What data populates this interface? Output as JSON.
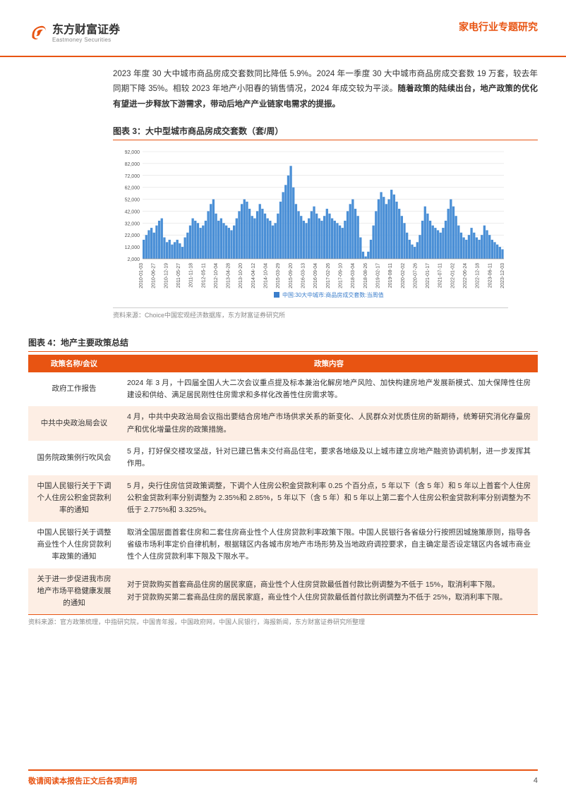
{
  "header": {
    "logo_cn": "东方财富证券",
    "logo_en": "Eastmoney Securities",
    "category": "家电行业专题研究",
    "logo_color": "#e85412"
  },
  "paragraph": {
    "text_plain": "2023 年度 30 大中城市商品房成交套数同比降低 5.9%。2024 年一季度 30 大中城市商品房成交套数 19 万套，较去年同期下降 35%。相较 2023 年地产小阳春的销售情况，2024 年成交较为平淡。",
    "text_bold": "随着政策的陆续出台，地产政策的优化有望进一步释放下游需求，带动后地产产业链家电需求的提振。"
  },
  "chart": {
    "title": "图表 3：大中型城市商品房成交套数（套/周）",
    "type": "area-bar",
    "legend": "中国:30大中城市:商品房成交套数:当周值",
    "legend_color": "#3b7ecb",
    "source": "资料来源：Choice中国宏观经济数据库，东方财富证券研究所",
    "ylim": [
      2000,
      92000
    ],
    "ytick_step": 10000,
    "yticks": [
      "2,000",
      "12,000",
      "22,000",
      "32,000",
      "42,000",
      "52,000",
      "62,000",
      "72,000",
      "82,000",
      "92,000"
    ],
    "xlabels": [
      "2010-01-03",
      "2010-06-27",
      "2010-12-19",
      "2011-05-27",
      "2011-11-18",
      "2012-05-11",
      "2012-10-04",
      "2013-04-28",
      "2013-10-20",
      "2014-04-12",
      "2014-10-04",
      "2015-03-29",
      "2015-09-20",
      "2016-03-13",
      "2016-09-04",
      "2017-02-26",
      "2017-09-10",
      "2018-03-04",
      "2018-08-26",
      "2019-02-17",
      "2019-08-11",
      "2020-02-02",
      "2020-07-26",
      "2021-01-17",
      "2021-07-11",
      "2022-01-02",
      "2022-06-24",
      "2022-12-18",
      "2023-06-11",
      "2023-12-03"
    ],
    "series_color": "#4a8fd6",
    "grid_color": "#d9d9d9",
    "axis_font_size": 7,
    "background_color": "#ffffff",
    "values": [
      18000,
      22000,
      26000,
      28000,
      24000,
      30000,
      34000,
      36000,
      20000,
      16000,
      18000,
      14000,
      16000,
      18000,
      15000,
      12000,
      20000,
      24000,
      30000,
      36000,
      34000,
      32000,
      28000,
      30000,
      34000,
      42000,
      48000,
      52000,
      40000,
      34000,
      36000,
      32000,
      30000,
      28000,
      26000,
      30000,
      36000,
      42000,
      48000,
      52000,
      50000,
      44000,
      38000,
      36000,
      42000,
      48000,
      44000,
      40000,
      36000,
      34000,
      30000,
      32000,
      40000,
      50000,
      58000,
      64000,
      72000,
      80000,
      62000,
      48000,
      42000,
      38000,
      34000,
      32000,
      36000,
      42000,
      46000,
      40000,
      36000,
      34000,
      38000,
      44000,
      40000,
      36000,
      34000,
      32000,
      30000,
      28000,
      34000,
      42000,
      48000,
      52000,
      44000,
      38000,
      20000,
      8000,
      4000,
      8000,
      18000,
      30000,
      42000,
      52000,
      58000,
      54000,
      48000,
      52000,
      60000,
      56000,
      50000,
      44000,
      38000,
      32000,
      24000,
      18000,
      14000,
      12000,
      16000,
      22000,
      34000,
      46000,
      40000,
      34000,
      30000,
      28000,
      26000,
      24000,
      28000,
      34000,
      44000,
      52000,
      46000,
      38000,
      30000,
      24000,
      20000,
      18000,
      22000,
      28000,
      24000,
      20000,
      18000,
      22000,
      30000,
      26000,
      22000,
      18000,
      16000,
      14000,
      12000,
      10000
    ]
  },
  "table": {
    "title": "图表 4：地产主要政策总结",
    "columns": [
      "政策名称/会议",
      "政策内容"
    ],
    "source": "资料来源：官方政策梳理，中指研究院，中国青年报，中国政府网，中国人民银行，海报新闻，东方财富证券研究所整理",
    "header_bg": "#e85412",
    "alt_bg": "#fdeee4",
    "rows": [
      {
        "name": "政府工作报告",
        "content": "2024 年 3 月，十四届全国人大二次会议重点提及标本兼治化解房地产风险、加快构建房地产发展新模式、加大保障性住房建设和供给、满足居民刚性住房需求和多样化改善性住房需求等。",
        "alt": false
      },
      {
        "name": "中共中央政治局会议",
        "content": "4 月，中共中央政治局会议指出要结合房地产市场供求关系的新变化、人民群众对优质住房的新期待，统筹研究消化存量房产和优化增量住房的政策措施。",
        "alt": true
      },
      {
        "name": "国务院政策例行吹风会",
        "content": "5 月，打好保交楼攻坚战，针对已建已售未交付商品住宅，要求各地级及以上城市建立房地产融资协调机制，进一步发挥其作用。",
        "alt": false
      },
      {
        "name": "中国人民银行关于下调个人住房公积金贷款利率的通知",
        "content": "5 月，央行住房信贷政策调整，下调个人住房公积金贷款利率 0.25 个百分点，5 年以下（含 5 年）和 5 年以上首套个人住房公积金贷款利率分别调整为 2.35%和 2.85%，5 年以下（含 5 年）和 5 年以上第二套个人住房公积金贷款利率分别调整为不低于 2.775%和 3.325%。",
        "alt": true
      },
      {
        "name": "中国人民银行关于调整商业性个人住房贷款利率政策的通知",
        "content": "取消全国层面首套住房和二套住房商业性个人住房贷款利率政策下限。中国人民银行各省级分行按照因城施策原则，指导各省级市场利率定价自律机制，根据辖区内各城市房地产市场形势及当地政府调控要求，自主确定是否设定辖区内各城市商业性个人住房贷款利率下限及下限水平。",
        "alt": false
      },
      {
        "name": "关于进一步促进我市房地产市场平稳健康发展的通知",
        "content": "对于贷款购买首套商品住房的居民家庭，商业性个人住房贷款最低首付款比例调整为不低于 15%，取消利率下限。\n对于贷款购买第二套商品住房的居民家庭，商业性个人住房贷款最低首付款比例调整为不低于 25%，取消利率下限。",
        "alt": true
      }
    ]
  },
  "footer": {
    "disclaimer": "敬请阅读本报告正文后各项声明",
    "page_number": "4"
  }
}
